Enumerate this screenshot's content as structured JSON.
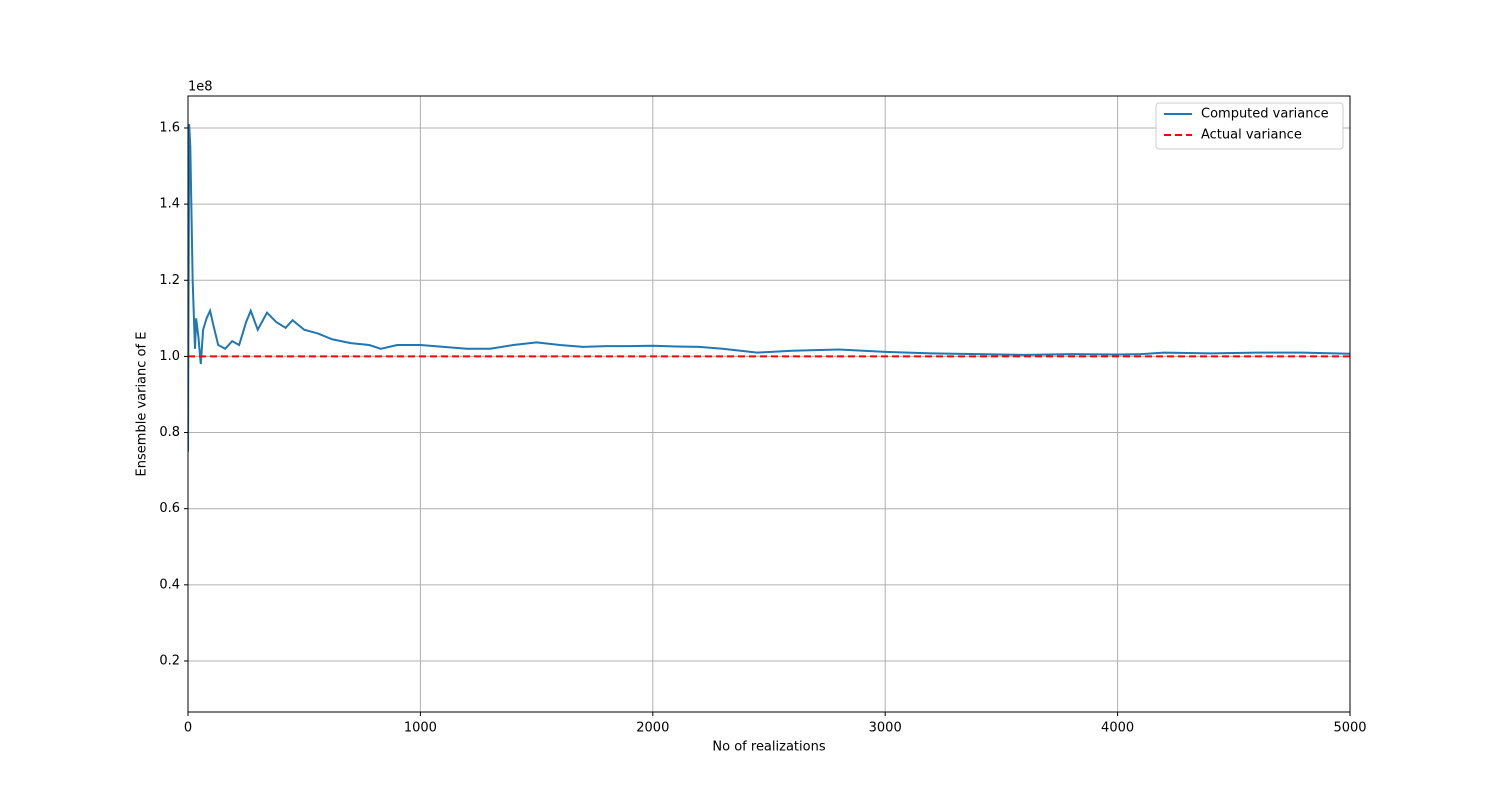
{
  "chart_data": {
    "type": "line",
    "xlabel": "No of realizations",
    "ylabel": "Ensemble varianc of E",
    "y_offset_label": "1e8",
    "xlim": [
      0,
      5000
    ],
    "xticks": [
      0,
      1000,
      2000,
      3000,
      4000,
      5000
    ],
    "ylim": [
      0.066,
      1.684
    ],
    "yticks": [
      0.2,
      0.4,
      0.6,
      0.8,
      {
        "value": 1,
        "label": "1.0"
      },
      1.2,
      1.4,
      1.6
    ],
    "grid": true,
    "legend": "upper right",
    "series": [
      {
        "name": "Computed variance",
        "color": "#1f77b4",
        "linestyle": "solid",
        "x": [
          0,
          5,
          10,
          20,
          30,
          35,
          45,
          55,
          65,
          80,
          95,
          110,
          130,
          160,
          190,
          220,
          250,
          270,
          300,
          340,
          380,
          420,
          450,
          500,
          560,
          620,
          700,
          780,
          830,
          900,
          1000,
          1100,
          1200,
          1300,
          1400,
          1500,
          1600,
          1700,
          1800,
          1900,
          2000,
          2100,
          2200,
          2300,
          2450,
          2600,
          2800,
          3000,
          3200,
          3400,
          3600,
          3800,
          4000,
          4100,
          4200,
          4400,
          4600,
          4800,
          5000
        ],
        "values": [
          0.75,
          1.61,
          1.55,
          1.2,
          1.02,
          1.1,
          1.05,
          0.98,
          1.07,
          1.1,
          1.12,
          1.08,
          1.03,
          1.02,
          1.04,
          1.03,
          1.09,
          1.12,
          1.07,
          1.115,
          1.09,
          1.075,
          1.095,
          1.07,
          1.06,
          1.045,
          1.035,
          1.03,
          1.02,
          1.03,
          1.03,
          1.025,
          1.02,
          1.02,
          1.03,
          1.037,
          1.03,
          1.025,
          1.027,
          1.027,
          1.028,
          1.026,
          1.025,
          1.02,
          1.01,
          1.015,
          1.018,
          1.012,
          1.008,
          1.006,
          1.004,
          1.006,
          1.005,
          1.006,
          1.01,
          1.008,
          1.01,
          1.01,
          1.007
        ]
      },
      {
        "name": "Actual variance",
        "color": "#ff0000",
        "linestyle": "dashed",
        "x": [
          0,
          5000
        ],
        "values": [
          1,
          1
        ]
      }
    ]
  }
}
